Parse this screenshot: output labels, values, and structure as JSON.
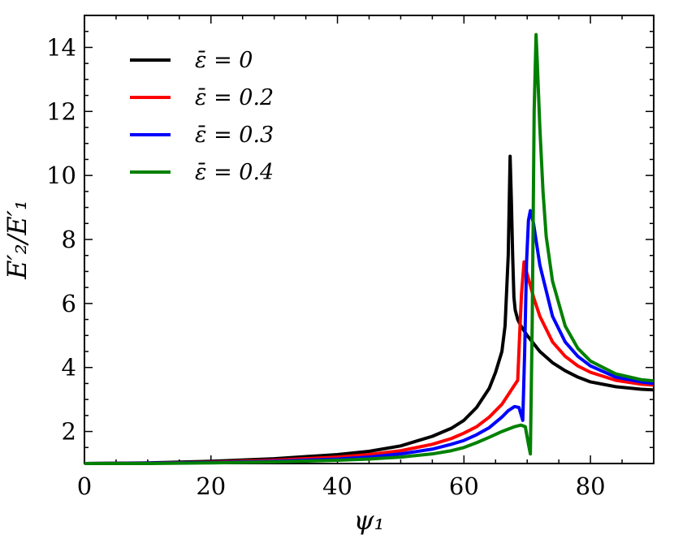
{
  "chart_data": {
    "type": "line",
    "title": "",
    "xlabel": "ψ₁",
    "ylabel": "E′₂/E′₁",
    "xlim": [
      0,
      90
    ],
    "ylim": [
      1,
      15
    ],
    "xticks": [
      0,
      20,
      40,
      60,
      80
    ],
    "yticks": [
      2,
      4,
      6,
      8,
      10,
      12,
      14
    ],
    "xtick_labels": [
      "0",
      "20",
      "40",
      "60",
      "80"
    ],
    "ytick_labels": [
      "2",
      "4",
      "6",
      "8",
      "10",
      "12",
      "14"
    ],
    "grid": false,
    "legend_position": "top-left",
    "series": [
      {
        "name": "ε̄ = 0",
        "color": "#000000",
        "x": [
          0,
          10,
          20,
          30,
          40,
          45,
          50,
          55,
          58,
          60,
          62,
          64,
          65,
          66,
          66.5,
          67,
          67.3,
          67.5,
          67.7,
          67.9,
          68.1,
          68.5,
          69,
          70,
          72,
          74,
          76,
          78,
          80,
          84,
          88,
          90
        ],
        "y": [
          1.0,
          1.02,
          1.07,
          1.15,
          1.28,
          1.38,
          1.55,
          1.85,
          2.1,
          2.35,
          2.75,
          3.35,
          3.85,
          4.5,
          5.3,
          7.5,
          10.6,
          9.2,
          7.5,
          6.2,
          5.8,
          5.5,
          5.3,
          5.0,
          4.5,
          4.15,
          3.9,
          3.7,
          3.55,
          3.4,
          3.32,
          3.3
        ]
      },
      {
        "name": "ε̄ = 0.2",
        "color": "#ff0000",
        "x": [
          0,
          10,
          20,
          30,
          40,
          45,
          50,
          55,
          58,
          60,
          62,
          64,
          66,
          67,
          68,
          68.5,
          68.8,
          69.1,
          69.5,
          69.8,
          70.3,
          71,
          72,
          74,
          76,
          78,
          80,
          84,
          88,
          90
        ],
        "y": [
          1.0,
          1.01,
          1.04,
          1.1,
          1.2,
          1.28,
          1.4,
          1.6,
          1.78,
          1.95,
          2.15,
          2.45,
          2.85,
          3.15,
          3.45,
          3.6,
          5.0,
          6.3,
          7.3,
          7.05,
          6.7,
          6.2,
          5.6,
          4.8,
          4.35,
          4.05,
          3.85,
          3.6,
          3.48,
          3.45
        ]
      },
      {
        "name": "ε̄ = 0.3",
        "color": "#0000ff",
        "x": [
          0,
          10,
          20,
          30,
          40,
          45,
          50,
          55,
          58,
          60,
          62,
          64,
          66,
          67,
          68,
          68.7,
          69.3,
          69.6,
          69.9,
          70.2,
          70.5,
          71,
          72,
          74,
          76,
          78,
          80,
          84,
          88,
          90
        ],
        "y": [
          1.0,
          1.01,
          1.03,
          1.07,
          1.14,
          1.2,
          1.3,
          1.45,
          1.6,
          1.72,
          1.9,
          2.12,
          2.45,
          2.65,
          2.78,
          2.75,
          2.35,
          4.5,
          7.3,
          8.6,
          8.9,
          8.5,
          7.2,
          5.6,
          4.8,
          4.35,
          4.05,
          3.7,
          3.55,
          3.5
        ]
      },
      {
        "name": "ε̄ = 0.4",
        "color": "#008000",
        "x": [
          0,
          10,
          20,
          30,
          40,
          45,
          50,
          55,
          58,
          60,
          62,
          64,
          66,
          68,
          69,
          69.7,
          70.2,
          70.5,
          70.8,
          71.1,
          71.4,
          71.6,
          72,
          72.5,
          73,
          74,
          76,
          78,
          80,
          84,
          88,
          90
        ],
        "y": [
          1.0,
          1.0,
          1.02,
          1.05,
          1.1,
          1.14,
          1.2,
          1.3,
          1.4,
          1.5,
          1.65,
          1.82,
          2.0,
          2.15,
          2.2,
          2.15,
          1.6,
          1.3,
          5.5,
          12.0,
          14.4,
          13.5,
          11.5,
          9.5,
          8.1,
          6.7,
          5.3,
          4.6,
          4.2,
          3.8,
          3.62,
          3.58
        ]
      }
    ]
  }
}
